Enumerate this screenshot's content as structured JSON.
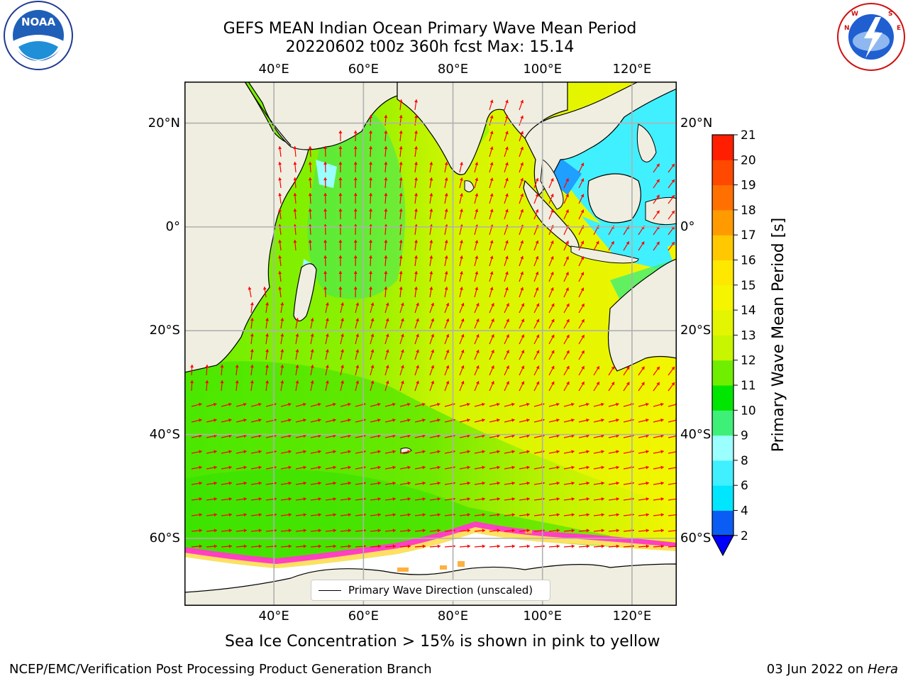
{
  "header": {
    "title_line1": "GEFS MEAN Indian Ocean Primary Wave Mean Period",
    "title_line2": "20220602 t00z 360h fcst   Max: 15.14"
  },
  "logos": {
    "noaa_text": "NOAA",
    "noaa_ring_text": "NATIONAL OCEANIC AND ATMOSPHERIC ADMINISTRATION · U.S. DEPARTMENT OF COMMERCE",
    "nws_ring_text": "NATIONAL WEATHER SERVICE"
  },
  "map": {
    "lon_ticks": [
      "40°E",
      "60°E",
      "80°E",
      "100°E",
      "120°E"
    ],
    "lon_tick_values": [
      40,
      60,
      80,
      100,
      120
    ],
    "lat_ticks": [
      "20°N",
      "0°",
      "20°S",
      "40°S",
      "60°S"
    ],
    "lat_tick_values": [
      20,
      0,
      -20,
      -40,
      -60
    ],
    "lon_range": [
      20,
      130
    ],
    "lat_range": [
      -73,
      28
    ],
    "grid": true,
    "legend_label": "Primary Wave Direction (unscaled)",
    "legend_placement": "bottom-center",
    "colors": {
      "land": "#efeee0",
      "ice": "#ffffff",
      "arrow": "#ff0000",
      "grid": "#b0b0b0"
    }
  },
  "colorbar": {
    "label": "Primary Wave Mean Period [s]",
    "ticks": [
      "2",
      "4",
      "6",
      "8",
      "9",
      "10",
      "11",
      "12",
      "13",
      "14",
      "15",
      "16",
      "17",
      "18",
      "19",
      "20",
      "21"
    ],
    "colors": [
      "#0a5cf5",
      "#00e6ff",
      "#40f0ff",
      "#9bffff",
      "#3ff078",
      "#00e600",
      "#6fee00",
      "#c8f500",
      "#e3f500",
      "#f5f500",
      "#ffe800",
      "#ffc800",
      "#ff9a00",
      "#ff7000",
      "#ff4800",
      "#ff1e00"
    ],
    "under_color": "#0000ff"
  },
  "caption": "Sea Ice Concentration > 15% is shown in pink to yellow",
  "footer": {
    "left": "NCEP/EMC/Verification Post Processing Product Generation Branch",
    "right_date": "03 Jun 2022 on ",
    "right_host": "Hera"
  }
}
